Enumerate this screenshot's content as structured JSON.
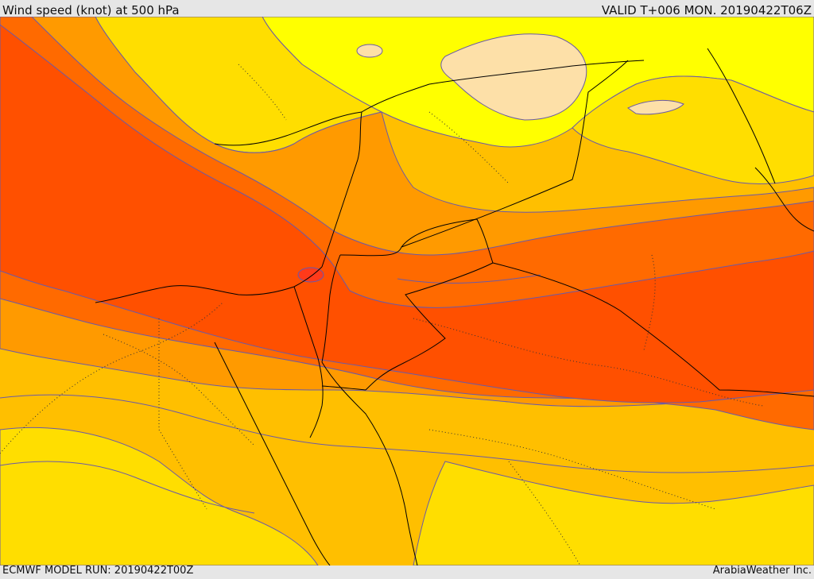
{
  "header": {
    "title": "Wind speed (knot) at 500 hPa",
    "valid": "VALID T+006 MON. 20190422T06Z"
  },
  "footer": {
    "model_run": "ECMWF MODEL RUN: 20190422T00Z",
    "credit": "ArabiaWeather Inc."
  },
  "map": {
    "variable": "wind speed",
    "level": "500 hPa",
    "colors": {
      "calmest": "#fde0a8",
      "light": "#ffff00",
      "light_moderate": "#ffde00",
      "moderate": "#ffbf00",
      "strong": "#ff9a00",
      "very_strong": "#ff6a00",
      "core": "#ff5000",
      "borders": "#000000",
      "contour_lines": "#6a5aa8"
    }
  }
}
